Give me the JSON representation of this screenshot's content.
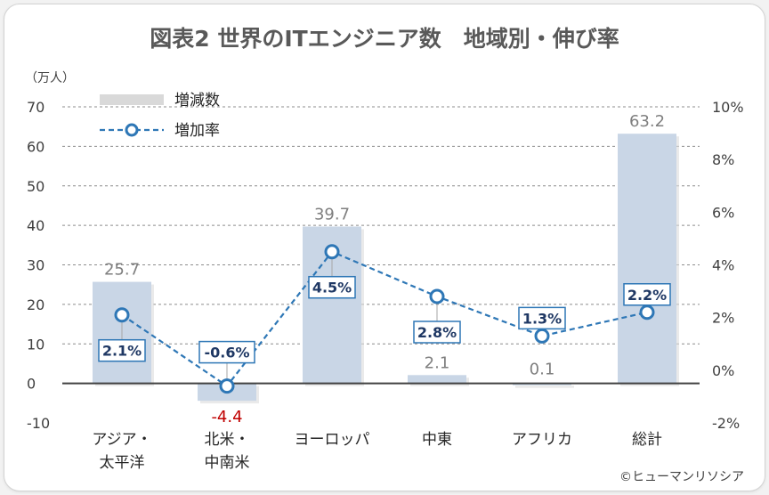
{
  "chart_data": {
    "type": "bar",
    "title": "図表2 世界のITエンジニア数　地域別・伸び率",
    "y_unit_label": "（万人）",
    "categories": [
      [
        "アジア・",
        "太平洋"
      ],
      [
        "北米・",
        "中南米"
      ],
      [
        "ヨーロッパ"
      ],
      [
        "中東"
      ],
      [
        "アフリカ"
      ],
      [
        "総計"
      ]
    ],
    "series": [
      {
        "name": "増減数",
        "type": "bar",
        "axis": "left",
        "values": [
          25.7,
          -4.4,
          39.7,
          2.1,
          0.1,
          63.2
        ]
      },
      {
        "name": "増加率",
        "type": "line",
        "axis": "right",
        "values": [
          2.1,
          -0.6,
          4.5,
          2.8,
          1.3,
          2.2
        ]
      }
    ],
    "bar_labels": [
      "25.7",
      "-4.4",
      "39.7",
      "2.1",
      "0.1",
      "63.2"
    ],
    "rate_labels": [
      "2.1%",
      "-0.6%",
      "4.5%",
      "2.8%",
      "1.3%",
      "2.2%"
    ],
    "y_left": {
      "range": [
        -10,
        70
      ],
      "ticks": [
        -10,
        0,
        10,
        20,
        30,
        40,
        50,
        60,
        70
      ]
    },
    "y_right": {
      "range": [
        -2,
        10
      ],
      "ticks": [
        -2,
        0,
        2,
        4,
        6,
        8,
        10
      ],
      "tick_labels": [
        "-2%",
        "0%",
        "2%",
        "4%",
        "6%",
        "8%",
        "10%"
      ]
    },
    "legend": {
      "placement": "top-left"
    },
    "grid": "dashed horizontal",
    "colors": {
      "bar": "#c9d6e6",
      "line": "#2e77b6",
      "negative_label": "#c00000",
      "value_label": "#7f7f7f",
      "text": "#404040",
      "title": "#595959"
    },
    "credit": "©ヒューマンリソシア"
  }
}
